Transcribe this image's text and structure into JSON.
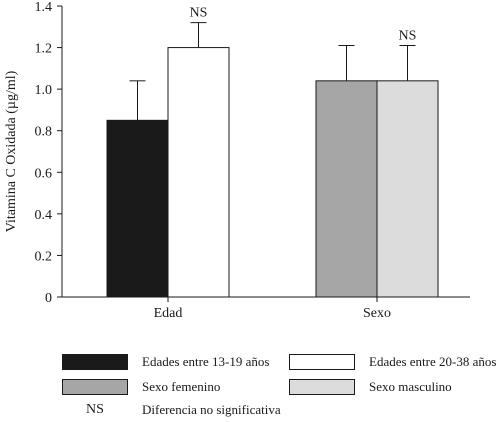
{
  "chart_data": {
    "type": "bar",
    "title": "",
    "xlabel": "",
    "ylabel": "Vitamina C Oxidada (µg/ml)",
    "ylim": [
      0,
      1.4
    ],
    "yticks": [
      "0",
      "0.2",
      "0.4",
      "0.6",
      "0.8",
      "1.0",
      "1.2",
      "1.4"
    ],
    "grid": false,
    "groups": [
      {
        "label": "Edad",
        "annotation": "NS",
        "bars": [
          {
            "series": "Edades entre 13-19 años",
            "value": 0.85,
            "error": 0.19,
            "color": "#1a1a1a"
          },
          {
            "series": "Edades entre 20-38 años",
            "value": 1.2,
            "error": 0.12,
            "color": "#ffffff"
          }
        ]
      },
      {
        "label": "Sexo",
        "annotation": "NS",
        "bars": [
          {
            "series": "Sexo femenino",
            "value": 1.04,
            "error": 0.17,
            "color": "#a6a6a6"
          },
          {
            "series": "Sexo masculino",
            "value": 1.04,
            "error": 0.17,
            "color": "#dcdcdc"
          }
        ]
      }
    ]
  },
  "legend": {
    "entries": [
      {
        "label": "Edades entre 13-19 años",
        "color": "#1a1a1a"
      },
      {
        "label": "Edades entre 20-38 años",
        "color": "#ffffff"
      },
      {
        "label": "Sexo femenino",
        "color": "#a6a6a6"
      },
      {
        "label": "Sexo masculino",
        "color": "#dcdcdc"
      }
    ],
    "ns_key": "NS",
    "ns_text": "Diferencia no significativa"
  }
}
